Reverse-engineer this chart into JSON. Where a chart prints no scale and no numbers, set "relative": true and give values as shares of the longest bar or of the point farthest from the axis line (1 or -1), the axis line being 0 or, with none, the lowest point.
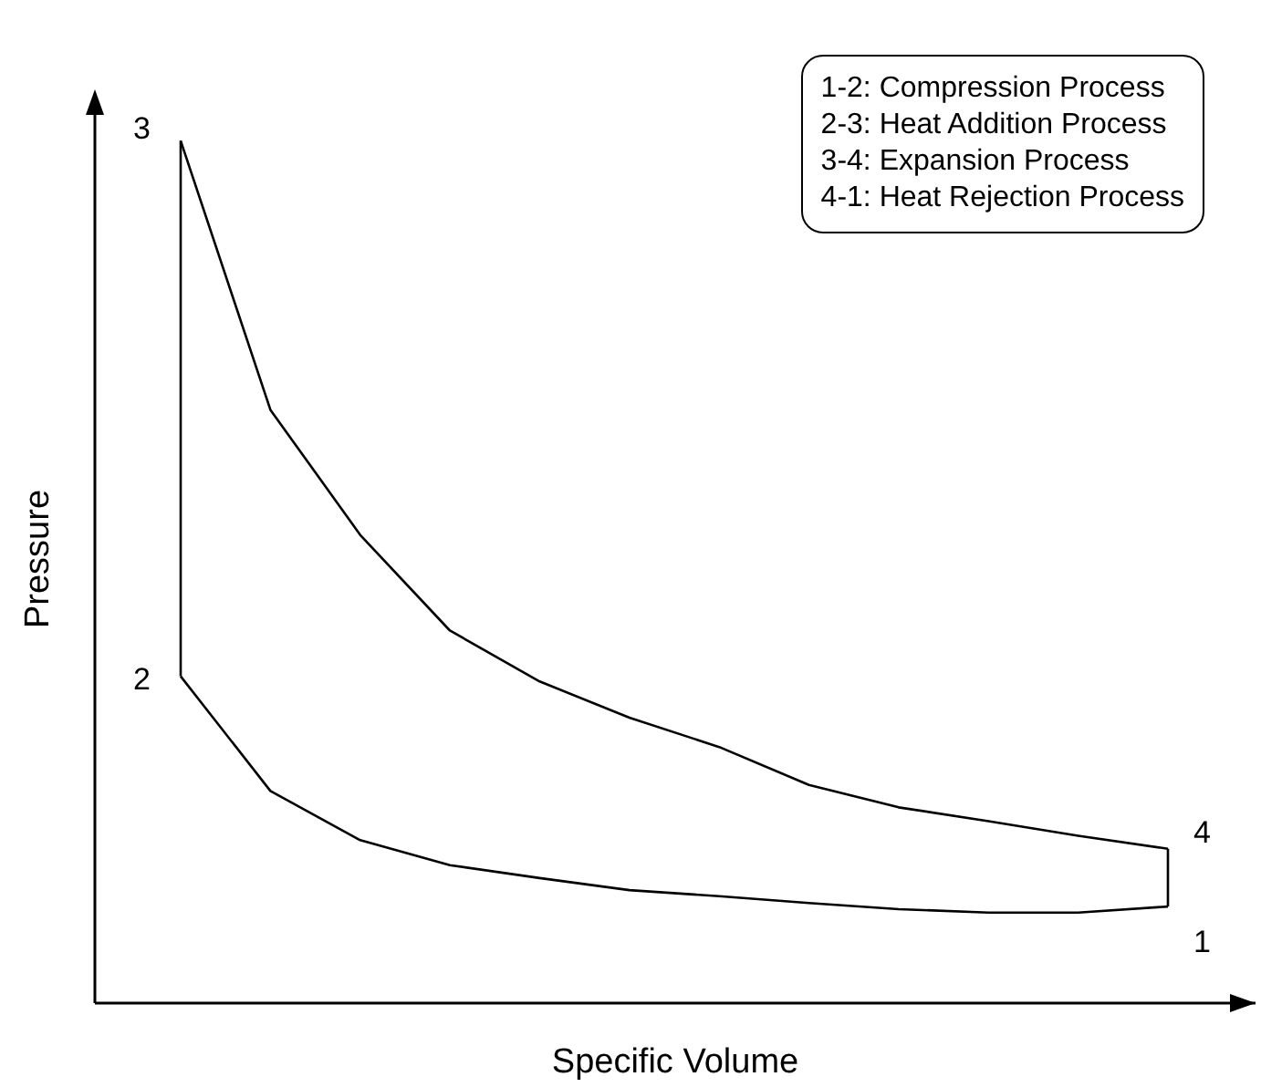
{
  "chart_data": {
    "type": "line",
    "relative": true,
    "xlabel": "Specific Volume",
    "ylabel": "Pressure",
    "grid": false,
    "legend": false,
    "categories": [
      null,
      null,
      null,
      null,
      null,
      null,
      null,
      null,
      null,
      null,
      null,
      null
    ],
    "series": [
      {
        "color": "#000000",
        "values": [
          1,
          0.688,
          0.543,
          0.432,
          0.373,
          0.331,
          0.297,
          0.253,
          0.227,
          0.211,
          0.194,
          0.179
        ]
      },
      {
        "color": "#000000",
        "values": [
          0.379,
          0.246,
          0.189,
          0.16,
          0.145,
          0.131,
          0.124,
          0.116,
          0.109,
          0.105,
          0.105,
          0.112
        ]
      }
    ],
    "annotations": [
      "3",
      "4",
      "2",
      "1",
      "1-2: Compression Process",
      "2-3: Heat Addition Process",
      "3-4: Expansion Process",
      "4-1: Heat Rejection Process"
    ]
  }
}
